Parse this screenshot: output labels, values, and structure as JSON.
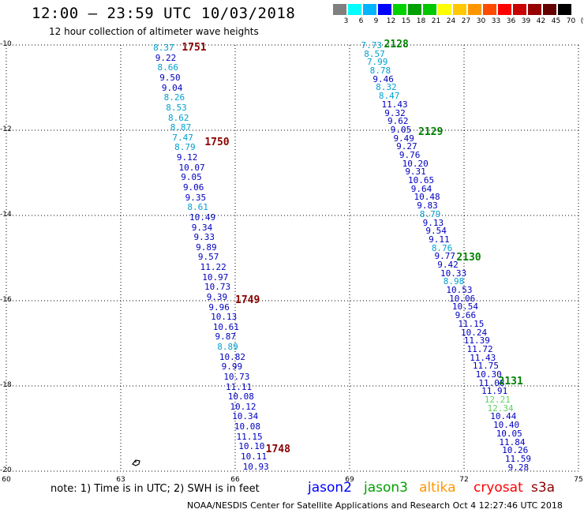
{
  "header": {
    "title": "12:00 – 23:59 UTC 10/03/2018",
    "subtitle": "12 hour collection of altimeter wave heights"
  },
  "color_scale": {
    "labels": [
      "3",
      "6",
      "9",
      "12",
      "15",
      "18",
      "21",
      "24",
      "27",
      "30",
      "33",
      "36",
      "39",
      "42",
      "45",
      "70",
      "(ft)"
    ],
    "colors": [
      "#808080",
      "#00ffff",
      "#00b4ff",
      "#0000ff",
      "#00d200",
      "#00a000",
      "#00c800",
      "#ffff00",
      "#ffc800",
      "#ff9600",
      "#ff4b00",
      "#ff0000",
      "#c80000",
      "#960000",
      "#640000",
      "#000000"
    ]
  },
  "axes": {
    "lat_labels": [
      "-10",
      "-12",
      "-14",
      "-16",
      "-18",
      "-20"
    ],
    "lon_labels": [
      "60",
      "63",
      "66",
      "69",
      "72",
      "75"
    ],
    "lat_range": [
      -10,
      -20
    ],
    "lon_range": [
      60,
      75
    ]
  },
  "passes": [
    {
      "id": "1751",
      "lon": 64.6,
      "lat": -10.08,
      "color": "#8b0000"
    },
    {
      "id": "1750",
      "lon": 65.2,
      "lat": -12.3,
      "color": "#8b0000"
    },
    {
      "id": "1749",
      "lon": 66.0,
      "lat": -16.0,
      "color": "#8b0000"
    },
    {
      "id": "1748",
      "lon": 66.8,
      "lat": -19.5,
      "color": "#8b0000"
    },
    {
      "id": "2128",
      "lon": 69.9,
      "lat": -10.0,
      "color": "#008000"
    },
    {
      "id": "2129",
      "lon": 70.8,
      "lat": -12.05,
      "color": "#008000"
    },
    {
      "id": "2130",
      "lon": 71.8,
      "lat": -15.0,
      "color": "#008000"
    },
    {
      "id": "2131",
      "lon": 72.9,
      "lat": -17.9,
      "color": "#008000"
    }
  ],
  "track_left": {
    "lon_start": 63.85,
    "lon_end": 66.2,
    "lat_start": -10.06,
    "lat_end": -19.88,
    "values": [
      {
        "v": "8.37",
        "c": "#00a0d0"
      },
      {
        "v": "9.22",
        "c": "#0000c0"
      },
      {
        "v": "8.66",
        "c": "#00a0d0"
      },
      {
        "v": "9.50",
        "c": "#0000c0"
      },
      {
        "v": "9.04",
        "c": "#0000c0"
      },
      {
        "v": "8.26",
        "c": "#00a0d0"
      },
      {
        "v": "8.53",
        "c": "#00a0d0"
      },
      {
        "v": "8.62",
        "c": "#00a0d0"
      },
      {
        "v": "8.87",
        "c": "#00a0d0"
      },
      {
        "v": "7.47",
        "c": "#00a0d0"
      },
      {
        "v": "8.79",
        "c": "#00a0d0"
      },
      {
        "v": "9.12",
        "c": "#0000c0"
      },
      {
        "v": "10.07",
        "c": "#0000c0"
      },
      {
        "v": "9.05",
        "c": "#0000c0"
      },
      {
        "v": "9.06",
        "c": "#0000c0"
      },
      {
        "v": "9.35",
        "c": "#0000c0"
      },
      {
        "v": "8.61",
        "c": "#00a0d0"
      },
      {
        "v": "10.49",
        "c": "#0000c0"
      },
      {
        "v": "9.34",
        "c": "#0000c0"
      },
      {
        "v": "9.33",
        "c": "#0000c0"
      },
      {
        "v": "9.89",
        "c": "#0000c0"
      },
      {
        "v": "9.57",
        "c": "#0000c0"
      },
      {
        "v": "11.22",
        "c": "#0000c0"
      },
      {
        "v": "10.97",
        "c": "#0000c0"
      },
      {
        "v": "10.73",
        "c": "#0000c0"
      },
      {
        "v": "9.39",
        "c": "#0000c0"
      },
      {
        "v": "9.96",
        "c": "#0000c0"
      },
      {
        "v": "10.13",
        "c": "#0000c0"
      },
      {
        "v": "10.61",
        "c": "#0000c0"
      },
      {
        "v": "9.87",
        "c": "#0000c0"
      },
      {
        "v": "8.89",
        "c": "#00a0d0"
      },
      {
        "v": "10.82",
        "c": "#0000c0"
      },
      {
        "v": "9.99",
        "c": "#0000c0"
      },
      {
        "v": "10.73",
        "c": "#0000c0"
      },
      {
        "v": "11.11",
        "c": "#0000c0"
      },
      {
        "v": "10.08",
        "c": "#0000c0"
      },
      {
        "v": "10.12",
        "c": "#0000c0"
      },
      {
        "v": "10.34",
        "c": "#0000c0"
      },
      {
        "v": "10.08",
        "c": "#0000c0"
      },
      {
        "v": "11.15",
        "c": "#0000c0"
      },
      {
        "v": "10.10",
        "c": "#0000c0"
      },
      {
        "v": "10.11",
        "c": "#0000c0"
      },
      {
        "v": "10.93",
        "c": "#0000c0"
      }
    ]
  },
  "track_right": {
    "lon_start": 69.3,
    "lon_end": 73.15,
    "lat_start": -10.0,
    "lat_end": -19.9,
    "values": [
      {
        "v": "7.73",
        "c": "#00a0d0"
      },
      {
        "v": "8.57",
        "c": "#00a0d0"
      },
      {
        "v": "7.99",
        "c": "#00a0d0"
      },
      {
        "v": "8.78",
        "c": "#00a0d0"
      },
      {
        "v": "9.46",
        "c": "#0000c0"
      },
      {
        "v": "8.32",
        "c": "#00a0d0"
      },
      {
        "v": "8.47",
        "c": "#00a0d0"
      },
      {
        "v": "11.43",
        "c": "#0000c0"
      },
      {
        "v": "9.32",
        "c": "#0000c0"
      },
      {
        "v": "9.62",
        "c": "#0000c0"
      },
      {
        "v": "9.05",
        "c": "#0000c0"
      },
      {
        "v": "9.49",
        "c": "#0000c0"
      },
      {
        "v": "9.27",
        "c": "#0000c0"
      },
      {
        "v": "9.76",
        "c": "#0000c0"
      },
      {
        "v": "10.20",
        "c": "#0000c0"
      },
      {
        "v": "9.31",
        "c": "#0000c0"
      },
      {
        "v": "10.65",
        "c": "#0000c0"
      },
      {
        "v": "9.64",
        "c": "#0000c0"
      },
      {
        "v": "10.48",
        "c": "#0000c0"
      },
      {
        "v": "9.83",
        "c": "#0000c0"
      },
      {
        "v": "8.79",
        "c": "#00a0d0"
      },
      {
        "v": "9.13",
        "c": "#0000c0"
      },
      {
        "v": "9.54",
        "c": "#0000c0"
      },
      {
        "v": "9.11",
        "c": "#0000c0"
      },
      {
        "v": "8.76",
        "c": "#00a0d0"
      },
      {
        "v": "9.77",
        "c": "#0000c0"
      },
      {
        "v": "9.42",
        "c": "#0000c0"
      },
      {
        "v": "10.33",
        "c": "#0000c0"
      },
      {
        "v": "8.98",
        "c": "#00a0d0"
      },
      {
        "v": "10.53",
        "c": "#0000c0"
      },
      {
        "v": "10.06",
        "c": "#0000c0"
      },
      {
        "v": "10.54",
        "c": "#0000c0"
      },
      {
        "v": "9.66",
        "c": "#0000c0"
      },
      {
        "v": "11.15",
        "c": "#0000c0"
      },
      {
        "v": "10.24",
        "c": "#0000c0"
      },
      {
        "v": "11.39",
        "c": "#0000c0"
      },
      {
        "v": "11.72",
        "c": "#0000c0"
      },
      {
        "v": "11.43",
        "c": "#0000c0"
      },
      {
        "v": "11.75",
        "c": "#0000c0"
      },
      {
        "v": "10.30",
        "c": "#0000c0"
      },
      {
        "v": "11.08",
        "c": "#0000c0"
      },
      {
        "v": "11.91",
        "c": "#0000c0"
      },
      {
        "v": "12.21",
        "c": "#60d060"
      },
      {
        "v": "12.34",
        "c": "#60d060"
      },
      {
        "v": "10.44",
        "c": "#0000c0"
      },
      {
        "v": "10.40",
        "c": "#0000c0"
      },
      {
        "v": "10.05",
        "c": "#0000c0"
      },
      {
        "v": "11.84",
        "c": "#0000c0"
      },
      {
        "v": "10.26",
        "c": "#0000c0"
      },
      {
        "v": "11.59",
        "c": "#0000c0"
      },
      {
        "v": "9.28",
        "c": "#0000c0"
      }
    ]
  },
  "footer": {
    "note": "note: 1) Time is in UTC; 2) SWH is in feet",
    "satellites": [
      {
        "name": "jason2",
        "color": "#0000ff"
      },
      {
        "name": "jason3",
        "color": "#00a000"
      },
      {
        "name": "altika",
        "color": "#ff9600"
      },
      {
        "name": "cryosat",
        "color": "#ff0000"
      },
      {
        "name": "s3a",
        "color": "#8b0000"
      }
    ],
    "credit": "NOAA/NESDIS Center for Satellite Applications and Research    Oct  4 12:27:46 UTC 2018"
  }
}
